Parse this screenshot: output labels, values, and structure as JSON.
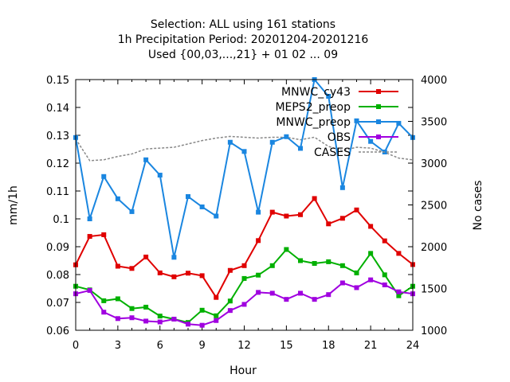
{
  "chart_data": {
    "type": "line",
    "title_lines": [
      "Selection: ALL using   161 stations",
      "1h Precipitation   Period: 20201204-20201216",
      "Used {00,03,...,21} + 01 02 ... 09"
    ],
    "xlabel": "Hour",
    "ylabel": "mm/1h",
    "y2label": "No cases",
    "xlim": [
      0,
      24
    ],
    "ylim": [
      0.06,
      0.15
    ],
    "y2lim": [
      1000,
      4000
    ],
    "xticks": [
      "0",
      "3",
      "6",
      "9",
      "12",
      "15",
      "18",
      "21",
      "24"
    ],
    "yticks": [
      "0.06",
      "0.07",
      "0.08",
      "0.09",
      "0.1",
      "0.11",
      "0.12",
      "0.13",
      "0.14",
      "0.15"
    ],
    "y2ticks": [
      "1000",
      "1500",
      "2000",
      "2500",
      "3000",
      "3500",
      "4000"
    ],
    "grid": false,
    "legend_position": "top-right",
    "x": [
      0,
      1,
      2,
      3,
      4,
      5,
      6,
      7,
      8,
      9,
      10,
      11,
      12,
      13,
      14,
      15,
      16,
      17,
      18,
      19,
      20,
      21,
      22,
      23,
      24
    ],
    "series": [
      {
        "name": "MNWC_cy43",
        "color": "#e00000",
        "axis": "left",
        "values": [
          0.0835,
          0.0937,
          0.0943,
          0.083,
          0.0822,
          0.0863,
          0.0806,
          0.0792,
          0.0805,
          0.0796,
          0.0718,
          0.0815,
          0.0832,
          0.0922,
          0.1024,
          0.101,
          0.1015,
          0.1073,
          0.0982,
          0.1002,
          0.1032,
          0.0973,
          0.0921,
          0.0876,
          0.0836
        ]
      },
      {
        "name": "MEPS2_preop",
        "color": "#00b000",
        "axis": "left",
        "values": [
          0.0758,
          0.0745,
          0.0706,
          0.0713,
          0.0678,
          0.0683,
          0.0651,
          0.064,
          0.0628,
          0.0672,
          0.0652,
          0.0705,
          0.0786,
          0.0798,
          0.0832,
          0.089,
          0.085,
          0.084,
          0.0846,
          0.0832,
          0.0806,
          0.0876,
          0.0799,
          0.0724,
          0.0758
        ]
      },
      {
        "name": "MNWC_preop",
        "color": "#1a86e0",
        "axis": "left",
        "values": [
          0.1292,
          0.1,
          0.1152,
          0.1072,
          0.1026,
          0.1212,
          0.1157,
          0.0862,
          0.108,
          0.1043,
          0.101,
          0.1275,
          0.1242,
          0.1024,
          0.1275,
          0.1295,
          0.1253,
          0.15,
          0.144,
          0.1112,
          0.1352,
          0.1278,
          0.124,
          0.1343,
          0.1292
        ]
      },
      {
        "name": "OBS",
        "color": "#a000e0",
        "axis": "left",
        "values": [
          0.0731,
          0.0743,
          0.0665,
          0.0642,
          0.0645,
          0.0633,
          0.063,
          0.064,
          0.0622,
          0.0618,
          0.0635,
          0.0671,
          0.0693,
          0.0736,
          0.0733,
          0.0711,
          0.0733,
          0.0711,
          0.0728,
          0.077,
          0.0753,
          0.0781,
          0.0763,
          0.0738,
          0.0731
        ]
      },
      {
        "name": "CASES",
        "color": "#888888",
        "axis": "right",
        "dashed": true,
        "values": [
          3290,
          3030,
          3040,
          3080,
          3110,
          3170,
          3180,
          3190,
          3230,
          3270,
          3300,
          3320,
          3310,
          3300,
          3310,
          3310,
          3280,
          3310,
          3200,
          3150,
          3190,
          3180,
          3130,
          3060,
          3040
        ]
      }
    ]
  }
}
